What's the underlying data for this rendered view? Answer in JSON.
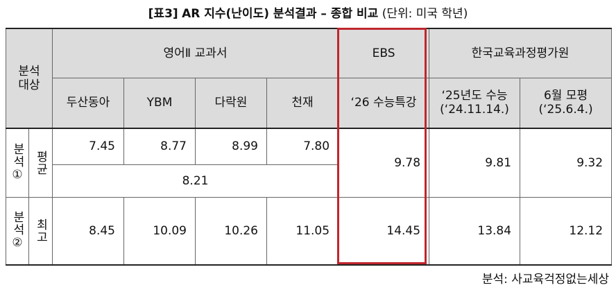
{
  "title": {
    "tag": "[표3]",
    "main": "AR 지수(난이도) 분석결과 – 종합 비교",
    "unit": "(단위: 미국 학년)"
  },
  "header": {
    "subject_line1": "분석",
    "subject_line2": "대상",
    "group_english2": "영어Ⅱ 교과서",
    "group_ebs": "EBS",
    "group_kice": "한국교육과정평가원",
    "col_dusan": "두산동아",
    "col_ybm": "YBM",
    "col_darakwon": "다락원",
    "col_chunjae": "천재",
    "col_ebs": "‘26 수능특강",
    "col_csat_line1": "‘25년도 수능",
    "col_csat_line2": "(‘24.11.14.)",
    "col_june_line1": "6월 모평",
    "col_june_line2": "(‘25.6.4.)"
  },
  "rows": {
    "analysis1_label": "분석①",
    "avg_label": "평균",
    "avg_values": [
      "7.45",
      "8.77",
      "8.99",
      "7.80"
    ],
    "avg_combined": "8.21",
    "avg_ebs": "9.78",
    "avg_csat": "9.81",
    "avg_june": "9.32",
    "analysis2_label": "분석②",
    "max_label": "최고",
    "max_values": [
      "8.45",
      "10.09",
      "10.26",
      "11.05"
    ],
    "max_ebs": "14.45",
    "max_csat": "13.84",
    "max_june": "12.12"
  },
  "source": "분석: 사교육걱정없는세상",
  "colors": {
    "highlight": "#c0262d",
    "header_bg": "#dcdcdc"
  }
}
